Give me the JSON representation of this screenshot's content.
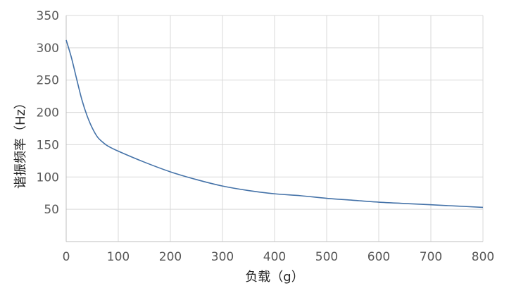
{
  "chart_data": {
    "type": "line",
    "title": "",
    "xlabel": "负载（g）",
    "ylabel": "谐振频率（Hz）",
    "xlim": [
      0,
      800
    ],
    "ylim": [
      0,
      350
    ],
    "xticks": [
      0,
      100,
      200,
      300,
      400,
      500,
      600,
      700,
      800
    ],
    "yticks": [
      50,
      100,
      150,
      200,
      250,
      300,
      350
    ],
    "grid": true,
    "legend": "none",
    "series": [
      {
        "color": "#4472a8",
        "x": [
          0,
          10,
          20,
          30,
          40,
          50,
          60,
          70,
          80,
          100,
          150,
          200,
          250,
          300,
          350,
          400,
          450,
          500,
          550,
          600,
          650,
          700,
          750,
          800
        ],
        "y": [
          312,
          285,
          252,
          220,
          195,
          176,
          162,
          154,
          148,
          140,
          123,
          108,
          96,
          86,
          79,
          74,
          71,
          67,
          64,
          61,
          59,
          57,
          55,
          53
        ]
      }
    ]
  }
}
